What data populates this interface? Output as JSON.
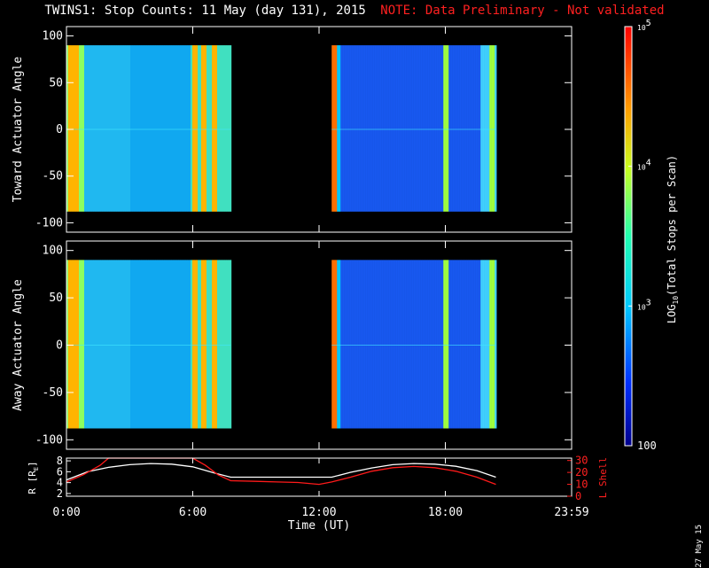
{
  "header": {
    "title": "TWINS1: Stop Counts: 11 May (day 131), 2015",
    "note": "NOTE: Data Preliminary - Not validated"
  },
  "footer": {
    "stamp": "27 May 15"
  },
  "colors": {
    "accent_note": "#ff2020",
    "ephem_R": "#ffffff",
    "ephem_L": "#ff1a1a"
  },
  "chart_data": [
    {
      "type": "heatmap",
      "ylabel": "Toward Actuator Angle",
      "ylim": [
        -110,
        110
      ],
      "yticks": [
        -100,
        -50,
        0,
        50,
        100
      ],
      "xlim": [
        0,
        24
      ],
      "xticks": [
        "0:00",
        "6:00",
        "12:00",
        "18:00",
        "23:59"
      ],
      "data_blocks": [
        {
          "t_start": 0.0,
          "t_end": 7.8,
          "angle_range": [
            -88,
            90
          ]
        },
        {
          "t_start": 12.6,
          "t_end": 20.4,
          "angle_range": [
            -88,
            90
          ]
        }
      ],
      "bright_bands_hours": [
        0.2,
        0.4,
        6.1,
        6.5,
        7.0,
        12.7,
        18.0,
        20.2
      ]
    },
    {
      "type": "heatmap",
      "ylabel": "Away Actuator Angle",
      "ylim": [
        -110,
        110
      ],
      "yticks": [
        -100,
        -50,
        0,
        50,
        100
      ],
      "xlim": [
        0,
        24
      ],
      "xticks": [
        "0:00",
        "6:00",
        "12:00",
        "18:00",
        "23:59"
      ],
      "data_blocks": [
        {
          "t_start": 0.0,
          "t_end": 7.8,
          "angle_range": [
            -88,
            90
          ]
        },
        {
          "t_start": 12.6,
          "t_end": 20.4,
          "angle_range": [
            -88,
            90
          ]
        }
      ],
      "bright_bands_hours": [
        0.2,
        0.4,
        6.1,
        6.5,
        7.0,
        12.7,
        18.0,
        20.2
      ]
    },
    {
      "type": "line",
      "xlabel": "Time (UT)",
      "ylabel_left": "R [R",
      "ylabel_left_sub": "E",
      "ylabel_left_close": "]",
      "ylabel_right": "L Shell",
      "ylim_left": [
        1.5,
        8.5
      ],
      "yticks_left": [
        2,
        4,
        6,
        8
      ],
      "ylim_right": [
        0,
        32
      ],
      "yticks_right": [
        0,
        10,
        20,
        30
      ],
      "series": [
        {
          "axis": "left",
          "x": [
            0,
            1,
            2,
            3,
            4,
            5,
            6,
            7,
            7.8,
            9,
            10,
            11,
            12,
            12.6,
            13.5,
            14.5,
            15.5,
            16.5,
            17.5,
            18.5,
            19.5,
            20.4
          ],
          "y": [
            4.5,
            6.0,
            6.8,
            7.3,
            7.5,
            7.4,
            6.9,
            5.8,
            5.0,
            5.0,
            5.0,
            5.0,
            5.0,
            5.0,
            5.9,
            6.7,
            7.3,
            7.5,
            7.4,
            7.0,
            6.2,
            5.0
          ]
        },
        {
          "axis": "right",
          "x": [
            0,
            0.8,
            1.6,
            2.0,
            6.0,
            6.6,
            7.2,
            7.8,
            9,
            10,
            11,
            12,
            12.6,
            13.5,
            14.5,
            15.5,
            16.5,
            17.5,
            18.5,
            19.5,
            20.4
          ],
          "y": [
            12,
            18,
            26,
            32,
            32,
            26,
            18,
            13,
            12.5,
            12,
            11.5,
            10,
            12,
            16,
            21,
            24,
            25,
            24,
            21,
            16,
            10
          ]
        }
      ]
    },
    {
      "type": "colorbar",
      "label": "LOG",
      "label_sub": "10",
      "label_rest": "(Total Stops per Scan)",
      "scale": "log",
      "range": [
        100,
        100000
      ],
      "ticks": [
        {
          "base": "10",
          "exp": "5",
          "value": 100000
        },
        {
          "base": "10",
          "exp": "4",
          "value": 10000
        },
        {
          "base": "10",
          "exp": "3",
          "value": 1000
        },
        {
          "base": "100",
          "exp": "",
          "value": 100
        }
      ]
    }
  ]
}
